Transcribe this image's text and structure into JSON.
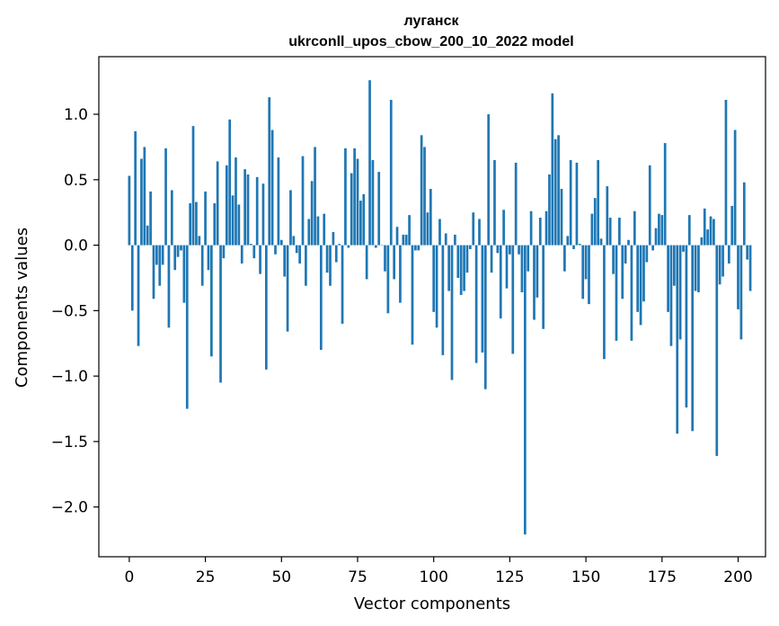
{
  "chart_data": {
    "type": "bar",
    "title_line1": "луганск",
    "title_line2": "ukrconll_upos_cbow_200_10_2022 model",
    "xlabel": "Vector components",
    "ylabel": "Components values",
    "xlim": [
      -10,
      209
    ],
    "ylim": [
      -2.38,
      1.44
    ],
    "xticks": [
      0,
      25,
      50,
      75,
      100,
      125,
      150,
      175,
      200
    ],
    "xtick_labels": [
      "0",
      "25",
      "50",
      "75",
      "100",
      "125",
      "150",
      "175",
      "200"
    ],
    "yticks": [
      1.0,
      0.5,
      0.0,
      -0.5,
      -1.0,
      -1.5,
      -2.0
    ],
    "ytick_labels": [
      "1.0",
      "0.5",
      "0.0",
      "−0.5",
      "−1.0",
      "−1.5",
      "−2.0"
    ],
    "bar_color": "#1f77b4",
    "values": [
      0.53,
      -0.5,
      0.87,
      -0.77,
      0.66,
      0.75,
      0.15,
      0.41,
      -0.41,
      -0.15,
      -0.31,
      -0.15,
      0.74,
      -0.63,
      0.42,
      -0.19,
      -0.09,
      -0.04,
      -0.44,
      -1.25,
      0.32,
      0.91,
      0.33,
      0.07,
      -0.31,
      0.41,
      -0.19,
      -0.85,
      0.32,
      0.64,
      -1.05,
      -0.1,
      0.61,
      0.96,
      0.38,
      0.67,
      0.31,
      -0.14,
      0.58,
      0.54,
      0.01,
      -0.1,
      0.52,
      -0.22,
      0.47,
      -0.95,
      1.13,
      0.88,
      -0.07,
      0.67,
      0.04,
      -0.24,
      -0.66,
      0.42,
      0.07,
      -0.06,
      -0.14,
      0.68,
      -0.31,
      0.2,
      0.49,
      0.75,
      0.22,
      -0.8,
      0.24,
      -0.21,
      -0.31,
      0.1,
      -0.13,
      0.01,
      -0.6,
      0.74,
      -0.02,
      0.55,
      0.74,
      0.66,
      0.34,
      0.39,
      -0.26,
      1.26,
      0.65,
      -0.02,
      0.56,
      0.0,
      -0.2,
      -0.52,
      1.11,
      -0.26,
      0.14,
      -0.44,
      0.08,
      0.08,
      0.23,
      -0.76,
      -0.04,
      -0.04,
      0.84,
      0.75,
      0.25,
      0.43,
      -0.51,
      -0.63,
      0.2,
      -0.84,
      0.09,
      -0.35,
      -1.03,
      0.08,
      -0.25,
      -0.38,
      -0.35,
      -0.21,
      -0.03,
      0.25,
      -0.9,
      0.2,
      -0.82,
      -1.1,
      1.0,
      -0.21,
      0.65,
      -0.06,
      -0.56,
      0.27,
      -0.33,
      -0.07,
      -0.83,
      0.63,
      -0.07,
      -0.36,
      -2.21,
      -0.2,
      0.26,
      -0.57,
      -0.4,
      0.21,
      -0.64,
      0.26,
      0.54,
      1.16,
      0.81,
      0.84,
      0.43,
      -0.2,
      0.07,
      0.65,
      -0.03,
      0.63,
      0.01,
      -0.41,
      -0.26,
      -0.45,
      0.24,
      0.36,
      0.65,
      0.05,
      -0.87,
      0.45,
      0.21,
      -0.22,
      -0.73,
      0.21,
      -0.41,
      -0.14,
      0.04,
      -0.73,
      0.26,
      -0.51,
      -0.61,
      -0.43,
      -0.13,
      0.61,
      -0.04,
      0.13,
      0.24,
      0.23,
      0.78,
      -0.51,
      -0.77,
      -0.31,
      -1.44,
      -0.72,
      -0.05,
      -1.24,
      0.23,
      -1.42,
      -0.35,
      -0.36,
      0.06,
      0.28,
      0.12,
      0.22,
      0.2,
      -1.61,
      -0.3,
      -0.24,
      1.11,
      -0.14,
      0.3,
      0.88,
      -0.49,
      -0.72,
      0.48,
      -0.11,
      -0.35
    ]
  }
}
